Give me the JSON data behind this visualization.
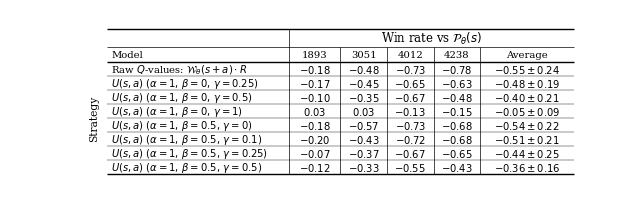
{
  "header_top": "Win rate vs $\\mathcal{P}_{\\theta}(s)$",
  "col_headers": [
    "Model",
    "1893",
    "3051",
    "4012",
    "4238",
    "Average"
  ],
  "row_label": "Strategy",
  "rows": [
    [
      "Raw $Q$-values: $\\mathcal{W}_{\\theta}(s+a) \\cdot R$",
      "$-0.18$",
      "$-0.48$",
      "$-0.73$",
      "$-0.78$",
      "$-0.55 \\pm 0.24$"
    ],
    [
      "$U(s,a)$ $(\\alpha=1,\\, \\beta=0,\\, \\gamma=0.25)$",
      "$-0.17$",
      "$-0.45$",
      "$-0.65$",
      "$-0.63$",
      "$-0.48 \\pm 0.19$"
    ],
    [
      "$U(s,a)$ $(\\alpha=1,\\, \\beta=0,\\, \\gamma=0.5)$",
      "$-0.10$",
      "$-0.35$",
      "$-0.67$",
      "$-0.48$",
      "$-0.40 \\pm 0.21$"
    ],
    [
      "$U(s,a)$ $(\\alpha=1,\\, \\beta=0,\\, \\gamma=1)$",
      "$0.03$",
      "$0.03$",
      "$-0.13$",
      "$-0.15$",
      "$-0.05 \\pm 0.09$"
    ],
    [
      "$U(s,a)$ $(\\alpha=1,\\, \\beta=0.5,\\, \\gamma=0)$",
      "$-0.18$",
      "$-0.57$",
      "$-0.73$",
      "$-0.68$",
      "$-0.54 \\pm 0.22$"
    ],
    [
      "$U(s,a)$ $(\\alpha=1,\\, \\beta=0.5,\\, \\gamma=0.1)$",
      "$-0.20$",
      "$-0.43$",
      "$-0.72$",
      "$-0.68$",
      "$-0.51 \\pm 0.21$"
    ],
    [
      "$U(s,a)$ $(\\alpha=1,\\, \\beta=0.5,\\, \\gamma=0.25)$",
      "$-0.07$",
      "$-0.37$",
      "$-0.67$",
      "$-0.65$",
      "$-0.44 \\pm 0.25$"
    ],
    [
      "$U(s,a)$ $(\\alpha=1,\\, \\beta=0.5,\\, \\gamma=0.5)$",
      "$-0.12$",
      "$-0.33$",
      "$-0.55$",
      "$-0.43$",
      "$-0.36 \\pm 0.16$"
    ]
  ],
  "figsize": [
    6.4,
    2.07
  ],
  "dpi": 100,
  "font_size": 7.2,
  "header_font_size": 8.5,
  "thick_lw": 1.0,
  "thin_lw": 0.5,
  "vert_lw": 0.5
}
